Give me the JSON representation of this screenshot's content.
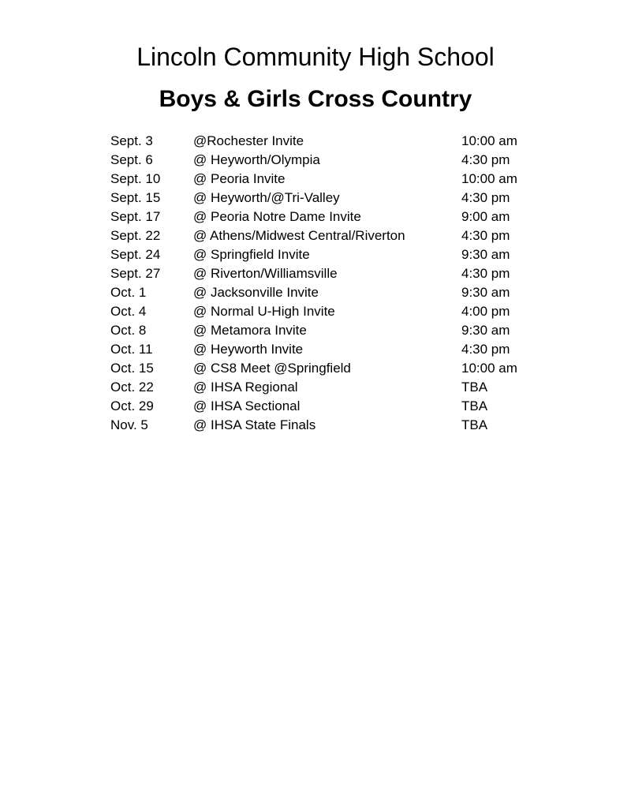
{
  "page": {
    "title": "Lincoln Community High School",
    "subtitle": "Boys & Girls Cross Country"
  },
  "schedule": {
    "rows": [
      {
        "date": "Sept. 3",
        "event": "@Rochester Invite",
        "time": "10:00 am"
      },
      {
        "date": "Sept. 6",
        "event": "@ Heyworth/Olympia",
        "time": "4:30 pm"
      },
      {
        "date": "Sept. 10",
        "event": "@ Peoria Invite",
        "time": "10:00 am"
      },
      {
        "date": "Sept. 15",
        "event": "@ Heyworth/@Tri-Valley",
        "time": "4:30 pm"
      },
      {
        "date": "Sept. 17",
        "event": "@ Peoria Notre Dame Invite",
        "time": "9:00 am"
      },
      {
        "date": "Sept. 22",
        "event": "@ Athens/Midwest Central/Riverton",
        "time": "4:30 pm"
      },
      {
        "date": "Sept. 24",
        "event": "@ Springfield Invite",
        "time": "9:30 am"
      },
      {
        "date": "Sept. 27",
        "event": "@ Riverton/Williamsville",
        "time": "4:30 pm"
      },
      {
        "date": "Oct. 1",
        "event": "@ Jacksonville Invite",
        "time": "9:30 am"
      },
      {
        "date": "Oct. 4",
        "event": "@ Normal U-High Invite",
        "time": "4:00 pm"
      },
      {
        "date": "Oct. 8",
        "event": "@ Metamora Invite",
        "time": "9:30 am"
      },
      {
        "date": "Oct. 11",
        "event": "@ Heyworth Invite",
        "time": "4:30 pm"
      },
      {
        "date": "Oct. 15",
        "event": "@ CS8 Meet @Springfield",
        "time": "10:00 am"
      },
      {
        "date": "Oct. 22",
        "event": "@ IHSA Regional",
        "time": "TBA"
      },
      {
        "date": "Oct. 29",
        "event": "@ IHSA Sectional",
        "time": "TBA"
      },
      {
        "date": "Nov. 5",
        "event": "@ IHSA State Finals",
        "time": "TBA"
      }
    ]
  }
}
